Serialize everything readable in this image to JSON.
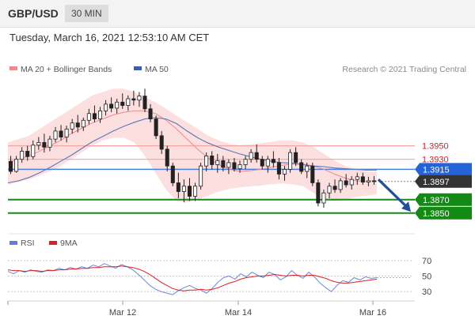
{
  "header": {
    "symbol": "GBP/USD",
    "timeframe": "30 MIN"
  },
  "datetime": "Tuesday, March 16, 2021 12:53:10 AM CET",
  "copyright": "Research © 2021 Trading Central",
  "chart_data": {
    "type": "candlestick",
    "legend": [
      {
        "name": "MA 20 + Bollinger Bands",
        "color": "#f08a8a"
      },
      {
        "name": "MA 50",
        "color": "#3a5faa"
      }
    ],
    "price_range": [
      1.3838,
      1.404
    ],
    "price_at_top": 1.404,
    "price_at_bottom": 1.3838,
    "levels": [
      {
        "value": 1.395,
        "label": "1.3950",
        "kind": "resistance",
        "color": "#d22222"
      },
      {
        "value": 1.393,
        "label": "1.3930",
        "kind": "resistance",
        "color": "#d22222"
      },
      {
        "value": 1.3915,
        "label": "1.3915",
        "kind": "pivot",
        "color": "#1c5fd6"
      },
      {
        "value": 1.3897,
        "label": "1.3897",
        "kind": "last",
        "color": "#333333"
      },
      {
        "value": 1.387,
        "label": "1.3870",
        "kind": "support",
        "color": "#138a13"
      },
      {
        "value": 1.385,
        "label": "1.3850",
        "kind": "support",
        "color": "#138a13"
      }
    ],
    "x_ticks": [
      "Mar 12",
      "Mar 14",
      "Mar 16"
    ],
    "candles": [
      [
        1.3927,
        1.3935,
        1.3908,
        1.3912
      ],
      [
        1.3912,
        1.3935,
        1.391,
        1.393
      ],
      [
        1.393,
        1.3948,
        1.3925,
        1.3942
      ],
      [
        1.3942,
        1.395,
        1.3928,
        1.3934
      ],
      [
        1.3934,
        1.3958,
        1.393,
        1.3951
      ],
      [
        1.3951,
        1.3963,
        1.3944,
        1.3955
      ],
      [
        1.3955,
        1.3968,
        1.394,
        1.3948
      ],
      [
        1.3948,
        1.3965,
        1.3942,
        1.396
      ],
      [
        1.396,
        1.3978,
        1.3955,
        1.3972
      ],
      [
        1.3972,
        1.3981,
        1.3958,
        1.3963
      ],
      [
        1.3963,
        1.398,
        1.3955,
        1.3975
      ],
      [
        1.3975,
        1.399,
        1.3968,
        1.3984
      ],
      [
        1.3984,
        1.3996,
        1.397,
        1.3978
      ],
      [
        1.3978,
        1.3992,
        1.3972,
        1.3988
      ],
      [
        1.3988,
        1.4005,
        1.3982,
        1.3998
      ],
      [
        1.3998,
        1.401,
        1.3985,
        1.399
      ],
      [
        1.399,
        1.4008,
        1.3984,
        1.4002
      ],
      [
        1.4002,
        1.4018,
        1.3995,
        1.4012
      ],
      [
        1.4012,
        1.4022,
        1.4,
        1.4006
      ],
      [
        1.4006,
        1.402,
        1.3998,
        1.4015
      ],
      [
        1.4015,
        1.4028,
        1.4005,
        1.401
      ],
      [
        1.401,
        1.4025,
        1.4002,
        1.402
      ],
      [
        1.402,
        1.4032,
        1.401,
        1.4018
      ],
      [
        1.4018,
        1.403,
        1.4008,
        1.4024
      ],
      [
        1.4024,
        1.4035,
        1.4,
        1.4005
      ],
      [
        1.4005,
        1.4012,
        1.3985,
        1.399
      ],
      [
        1.399,
        1.3995,
        1.396,
        1.3965
      ],
      [
        1.3965,
        1.3972,
        1.3938,
        1.3945
      ],
      [
        1.3945,
        1.395,
        1.3912,
        1.392
      ],
      [
        1.392,
        1.3925,
        1.389,
        1.3895
      ],
      [
        1.3895,
        1.391,
        1.3872,
        1.3882
      ],
      [
        1.3882,
        1.39,
        1.3866,
        1.389
      ],
      [
        1.389,
        1.3902,
        1.3868,
        1.3875
      ],
      [
        1.3875,
        1.3895,
        1.3868,
        1.389
      ],
      [
        1.389,
        1.3925,
        1.3885,
        1.392
      ],
      [
        1.392,
        1.394,
        1.3912,
        1.3935
      ],
      [
        1.3935,
        1.3942,
        1.3915,
        1.3922
      ],
      [
        1.3922,
        1.3938,
        1.391,
        1.3928
      ],
      [
        1.3928,
        1.3935,
        1.3912,
        1.3918
      ],
      [
        1.3918,
        1.393,
        1.3908,
        1.3925
      ],
      [
        1.3925,
        1.3932,
        1.3912,
        1.3916
      ],
      [
        1.3916,
        1.3928,
        1.391,
        1.3922
      ],
      [
        1.3922,
        1.3935,
        1.3915,
        1.393
      ],
      [
        1.393,
        1.3945,
        1.3925,
        1.394
      ],
      [
        1.394,
        1.3952,
        1.3925,
        1.393
      ],
      [
        1.393,
        1.3935,
        1.3915,
        1.392
      ],
      [
        1.392,
        1.3935,
        1.391,
        1.393
      ],
      [
        1.393,
        1.3942,
        1.3918,
        1.3925
      ],
      [
        1.3925,
        1.3932,
        1.39,
        1.3908
      ],
      [
        1.3908,
        1.392,
        1.3898,
        1.3915
      ],
      [
        1.3915,
        1.3945,
        1.391,
        1.394
      ],
      [
        1.394,
        1.3948,
        1.392,
        1.3925
      ],
      [
        1.3925,
        1.393,
        1.3908,
        1.3912
      ],
      [
        1.3912,
        1.3925,
        1.3902,
        1.392
      ],
      [
        1.392,
        1.3925,
        1.389,
        1.3895
      ],
      [
        1.3895,
        1.39,
        1.386,
        1.3865
      ],
      [
        1.3865,
        1.3885,
        1.3858,
        1.388
      ],
      [
        1.388,
        1.3895,
        1.3872,
        1.389
      ],
      [
        1.389,
        1.39,
        1.388,
        1.3885
      ],
      [
        1.3885,
        1.3902,
        1.388,
        1.3898
      ],
      [
        1.3898,
        1.3908,
        1.3888,
        1.3892
      ],
      [
        1.3892,
        1.3905,
        1.3885,
        1.39
      ],
      [
        1.39,
        1.391,
        1.3892,
        1.3904
      ],
      [
        1.3904,
        1.391,
        1.3892,
        1.3896
      ],
      [
        1.3896,
        1.3904,
        1.389,
        1.3898
      ],
      [
        1.3898,
        1.3905,
        1.3892,
        1.3897
      ]
    ],
    "ma20": [
      1.3925,
      1.393,
      1.3935,
      1.3942,
      1.395,
      1.3958,
      1.3968,
      1.3976,
      1.3984,
      1.399,
      1.3996,
      1.4,
      1.4002,
      1.4002,
      1.3998,
      1.3988,
      1.3975,
      1.396,
      1.3945,
      1.3932,
      1.3922,
      1.3915,
      1.3912,
      1.3913,
      1.3915,
      1.3918,
      1.3921,
      1.3923,
      1.3923,
      1.392,
      1.3915,
      1.3908,
      1.3902,
      1.3898,
      1.3897,
      1.3898
    ],
    "bb_upper": [
      1.3955,
      1.396,
      1.3965,
      1.3975,
      1.3985,
      1.3995,
      1.4005,
      1.4015,
      1.4025,
      1.403,
      1.4035,
      1.4035,
      1.403,
      1.4022,
      1.4015,
      1.4005,
      1.3995,
      1.3985,
      1.3975,
      1.3965,
      1.3958,
      1.3953,
      1.3951,
      1.3952,
      1.3954,
      1.3956,
      1.3958,
      1.3958,
      1.3955,
      1.3948,
      1.3938,
      1.3928,
      1.392,
      1.3915,
      1.3912,
      1.3912
    ],
    "bb_lower": [
      1.3892,
      1.3896,
      1.39,
      1.3906,
      1.3912,
      1.392,
      1.393,
      1.394,
      1.395,
      1.3958,
      1.3962,
      1.3962,
      1.3955,
      1.3935,
      1.391,
      1.3885,
      1.3868,
      1.3866,
      1.387,
      1.3876,
      1.3882,
      1.3886,
      1.3888,
      1.389,
      1.3891,
      1.3893,
      1.3894,
      1.3893,
      1.389,
      1.388,
      1.387,
      1.3868,
      1.387,
      1.3874,
      1.3876,
      1.3878
    ],
    "ma50": [
      1.3895,
      1.3898,
      1.3903,
      1.391,
      1.3918,
      1.3927,
      1.3936,
      1.3946,
      1.3956,
      1.3964,
      1.3972,
      1.3979,
      1.3985,
      1.399,
      1.3992,
      1.399,
      1.3983,
      1.3972,
      1.3962,
      1.3954,
      1.3948,
      1.3943,
      1.3938,
      1.3934,
      1.393,
      1.3927,
      1.3925,
      1.3924,
      1.3922,
      1.392,
      1.3919,
      1.3917,
      1.3916,
      1.3915,
      1.3914,
      1.3914
    ],
    "projection": {
      "from": 1.39,
      "to": 1.3852
    },
    "rsi": {
      "legend": [
        {
          "name": "RSI",
          "color": "#5f7fd6"
        },
        {
          "name": "9MA",
          "color": "#e02020"
        }
      ],
      "range": [
        20,
        80
      ],
      "ticks": [
        "70",
        "50",
        "30"
      ],
      "tick_values": [
        70,
        50,
        30
      ],
      "rsi_values": [
        56,
        53,
        57,
        55,
        58,
        56,
        55,
        58,
        57,
        60,
        58,
        61,
        59,
        62,
        60,
        64,
        62,
        66,
        63,
        60,
        65,
        62,
        58,
        52,
        45,
        38,
        33,
        30,
        28,
        26,
        31,
        35,
        38,
        34,
        32,
        28,
        34,
        42,
        48,
        50,
        46,
        53,
        49,
        55,
        51,
        48,
        55,
        52,
        45,
        49,
        57,
        51,
        47,
        55,
        49,
        41,
        35,
        30,
        38,
        44,
        42,
        48,
        45,
        49,
        47,
        48
      ],
      "ma9_values": [
        58,
        57,
        57,
        56,
        57,
        57,
        56,
        57,
        57,
        58,
        58,
        59,
        59,
        60,
        60,
        61,
        61,
        62,
        62,
        62,
        63,
        62,
        61,
        59,
        56,
        52,
        47,
        42,
        38,
        34,
        32,
        31,
        32,
        32,
        33,
        32,
        33,
        35,
        38,
        41,
        43,
        46,
        48,
        49,
        50,
        50,
        51,
        52,
        51,
        50,
        51,
        51,
        50,
        51,
        51,
        49,
        47,
        44,
        42,
        41,
        41,
        42,
        43,
        44,
        45,
        46
      ]
    }
  }
}
